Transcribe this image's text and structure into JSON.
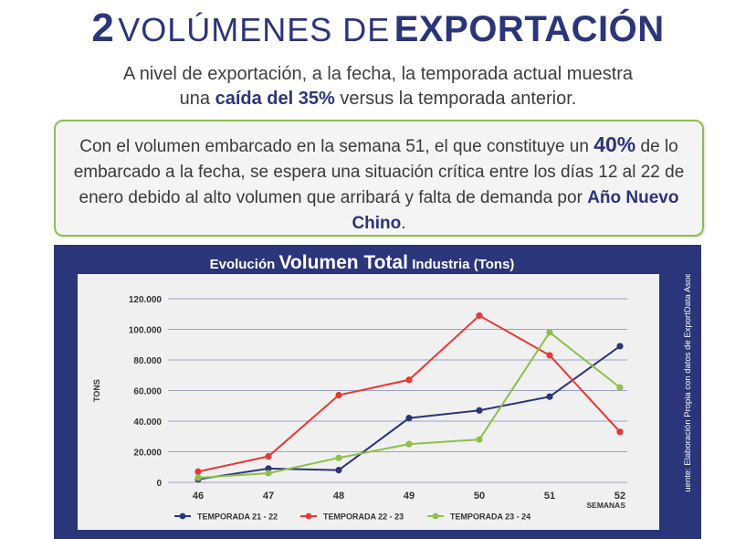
{
  "header": {
    "number": "2",
    "title_light": "VOLÚMENES DE",
    "title_bold": "EXPORTACIÓN"
  },
  "subtitle": {
    "line1": "A nivel de exportación, a la fecha, la temporada actual muestra",
    "line2_pre": "una",
    "line2_bold": "caída del 35%",
    "line2_post": "versus la temporada anterior."
  },
  "callout": {
    "part1": "Con el volumen embarcado en la semana 51, el que constituye un",
    "bold1": "40%",
    "part2": "de lo embarcado a la fecha, se espera una situación crítica entre los días 12 al 22 de enero debido al alto volumen que arribará y falta de demanda por",
    "bold2": "Año Nuevo Chino",
    "part3": "."
  },
  "chart_title": {
    "pre": "Evolución",
    "bold": "Volumen Total",
    "post": "Industria (Tons)"
  },
  "source_text": "Fuente: Elaboración Propia con datos de ExportData Asoex",
  "chart_data": {
    "type": "line",
    "x": [
      "46",
      "47",
      "48",
      "49",
      "50",
      "51",
      "52"
    ],
    "xlabel": "SEMANAS",
    "ylabel": "TONS",
    "ylim": [
      0,
      120000
    ],
    "ytick_values": [
      0,
      20000,
      40000,
      60000,
      80000,
      100000,
      120000
    ],
    "ytick_labels": [
      "0",
      "20.000",
      "40.000",
      "60.000",
      "80.000",
      "100.000",
      "120.000"
    ],
    "grid": true,
    "legend_position": "bottom",
    "series": [
      {
        "name": "TEMPORADA 21 - 22",
        "color": "#2b3579",
        "values": [
          2000,
          9000,
          8000,
          42000,
          47000,
          56000,
          89000
        ]
      },
      {
        "name": "TEMPORADA 22 - 23",
        "color": "#e53935",
        "values": [
          7000,
          17000,
          57000,
          67000,
          109000,
          83000,
          33000
        ]
      },
      {
        "name": "TEMPORADA 23 - 24",
        "color": "#8cc04b",
        "values": [
          3000,
          6000,
          16000,
          25000,
          28000,
          98000,
          62000
        ]
      }
    ]
  }
}
